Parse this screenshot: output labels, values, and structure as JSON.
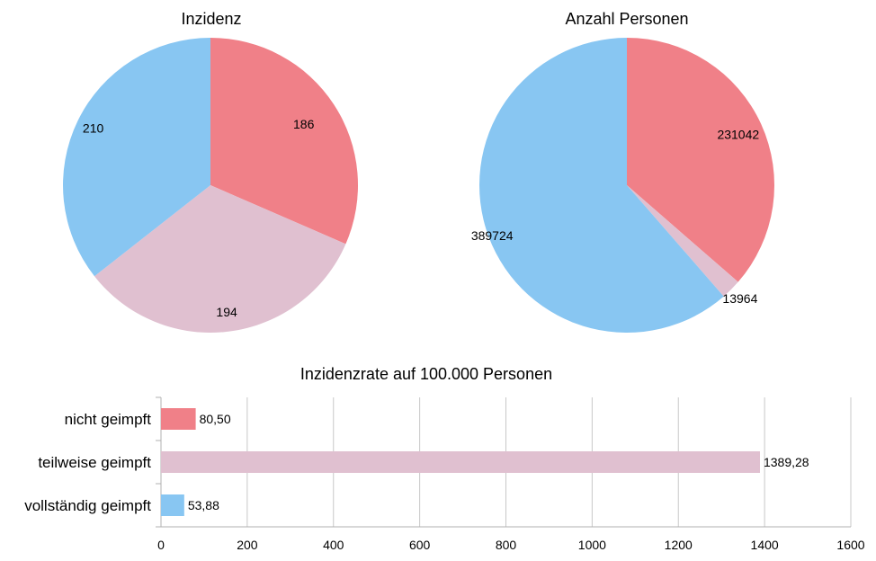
{
  "colors": {
    "red": "#f08088",
    "pink": "#e0c0d0",
    "blue": "#88c6f2",
    "grid": "#c8c8c8",
    "axis": "#b0b0b0"
  },
  "chart_data": [
    {
      "type": "pie",
      "title": "Inzidenz",
      "slices": [
        {
          "label": "186",
          "value": 186,
          "color": "#f08088"
        },
        {
          "label": "194",
          "value": 194,
          "color": "#e0c0d0"
        },
        {
          "label": "210",
          "value": 210,
          "color": "#88c6f2"
        }
      ]
    },
    {
      "type": "pie",
      "title": "Anzahl Personen",
      "slices": [
        {
          "label": "231042",
          "value": 231042,
          "color": "#f08088"
        },
        {
          "label": "13964",
          "value": 13964,
          "color": "#e0c0d0"
        },
        {
          "label": "389724",
          "value": 389724,
          "color": "#88c6f2"
        }
      ]
    },
    {
      "type": "bar",
      "orientation": "horizontal",
      "title": "Inzidenzrate auf 100.000 Personen",
      "categories": [
        "nicht geimpft",
        "teilweise geimpft",
        "vollständig geimpft"
      ],
      "values": [
        80.5,
        1389.28,
        53.88
      ],
      "value_labels": [
        "80,50",
        "1389,28",
        "53,88"
      ],
      "colors": [
        "#f08088",
        "#e0c0d0",
        "#88c6f2"
      ],
      "xlim": [
        0,
        1600
      ],
      "xticks": [
        0,
        200,
        400,
        600,
        800,
        1000,
        1200,
        1400,
        1600
      ],
      "grid": true,
      "legend": "none"
    }
  ]
}
